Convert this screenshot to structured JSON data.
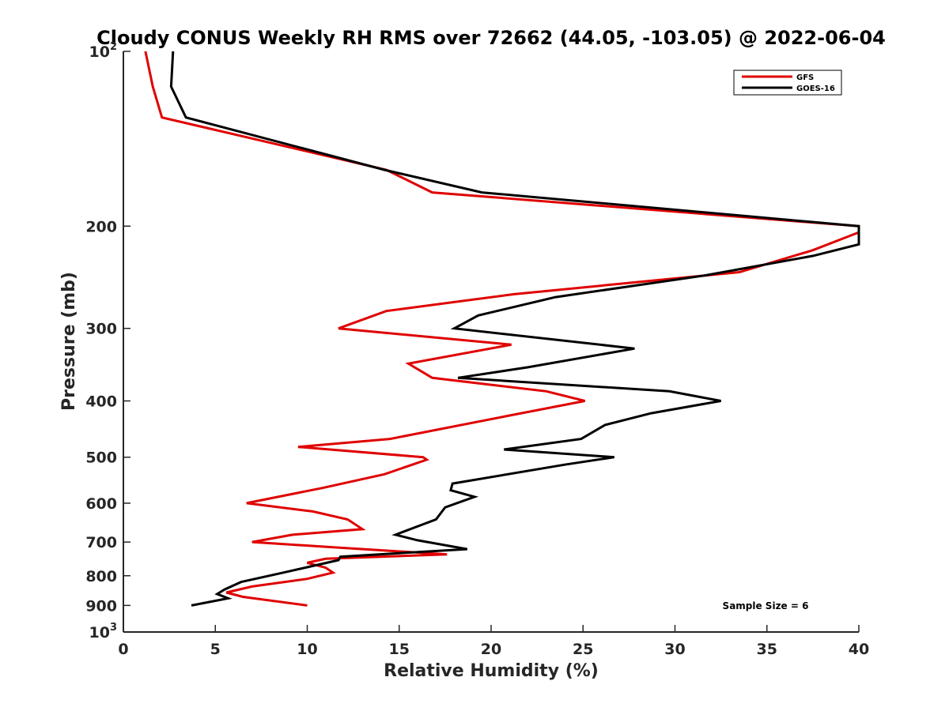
{
  "chart_data": {
    "type": "line",
    "title": "Cloudy CONUS Weekly RH RMS over 72662 (44.05, -103.05) @ 2022-06-04",
    "xlabel": "Relative Humidity (%)",
    "ylabel": "Pressure (mb)",
    "xlim": [
      0,
      40
    ],
    "ylim": [
      100,
      1000
    ],
    "y_scale": "log",
    "y_reversed": true,
    "x_ticks": [
      0,
      5,
      10,
      15,
      20,
      25,
      30,
      35,
      40
    ],
    "y_ticks": [
      {
        "value": 100,
        "label": "10",
        "sup": "2"
      },
      {
        "value": 200,
        "label": "200",
        "sup": ""
      },
      {
        "value": 300,
        "label": "300",
        "sup": ""
      },
      {
        "value": 400,
        "label": "400",
        "sup": ""
      },
      {
        "value": 500,
        "label": "500",
        "sup": ""
      },
      {
        "value": 600,
        "label": "600",
        "sup": ""
      },
      {
        "value": 700,
        "label": "700",
        "sup": ""
      },
      {
        "value": 800,
        "label": "800",
        "sup": ""
      },
      {
        "value": 900,
        "label": "900",
        "sup": ""
      },
      {
        "value": 1000,
        "label": "10",
        "sup": "3"
      }
    ],
    "grid": false,
    "legend_position": "top-right",
    "series": [
      {
        "name": "GFS",
        "color": "#e00000",
        "points": [
          {
            "x": 1.2,
            "y": 100
          },
          {
            "x": 1.6,
            "y": 115
          },
          {
            "x": 2.1,
            "y": 130
          },
          {
            "x": 14.3,
            "y": 160
          },
          {
            "x": 16.8,
            "y": 175
          },
          {
            "x": 40.0,
            "y": 200
          },
          {
            "x": 40.0,
            "y": 205
          },
          {
            "x": 37.5,
            "y": 220
          },
          {
            "x": 33.5,
            "y": 240
          },
          {
            "x": 21.2,
            "y": 262
          },
          {
            "x": 14.3,
            "y": 280
          },
          {
            "x": 11.7,
            "y": 300
          },
          {
            "x": 21.1,
            "y": 320
          },
          {
            "x": 15.5,
            "y": 345
          },
          {
            "x": 16.8,
            "y": 365
          },
          {
            "x": 23.0,
            "y": 385
          },
          {
            "x": 25.1,
            "y": 400
          },
          {
            "x": 20.8,
            "y": 425
          },
          {
            "x": 14.5,
            "y": 465
          },
          {
            "x": 9.5,
            "y": 480
          },
          {
            "x": 16.3,
            "y": 500
          },
          {
            "x": 16.5,
            "y": 505
          },
          {
            "x": 14.2,
            "y": 535
          },
          {
            "x": 10.8,
            "y": 565
          },
          {
            "x": 6.7,
            "y": 600
          },
          {
            "x": 10.3,
            "y": 620
          },
          {
            "x": 12.2,
            "y": 640
          },
          {
            "x": 13.0,
            "y": 665
          },
          {
            "x": 9.2,
            "y": 680
          },
          {
            "x": 7.0,
            "y": 700
          },
          {
            "x": 11.5,
            "y": 715
          },
          {
            "x": 17.6,
            "y": 735
          },
          {
            "x": 11.0,
            "y": 748
          },
          {
            "x": 10.0,
            "y": 760
          },
          {
            "x": 11.0,
            "y": 775
          },
          {
            "x": 11.4,
            "y": 790
          },
          {
            "x": 10.0,
            "y": 810
          },
          {
            "x": 7.0,
            "y": 835
          },
          {
            "x": 5.6,
            "y": 855
          },
          {
            "x": 6.5,
            "y": 870
          },
          {
            "x": 10.0,
            "y": 900
          }
        ]
      },
      {
        "name": "GOES-16",
        "color": "#000000",
        "points": [
          {
            "x": 2.7,
            "y": 100
          },
          {
            "x": 2.6,
            "y": 115
          },
          {
            "x": 3.4,
            "y": 130
          },
          {
            "x": 14.2,
            "y": 160
          },
          {
            "x": 19.5,
            "y": 175
          },
          {
            "x": 40.0,
            "y": 200
          },
          {
            "x": 40.0,
            "y": 215
          },
          {
            "x": 37.5,
            "y": 225
          },
          {
            "x": 31.7,
            "y": 243
          },
          {
            "x": 23.5,
            "y": 265
          },
          {
            "x": 19.3,
            "y": 285
          },
          {
            "x": 18.0,
            "y": 300
          },
          {
            "x": 27.8,
            "y": 325
          },
          {
            "x": 22.0,
            "y": 350
          },
          {
            "x": 18.2,
            "y": 365
          },
          {
            "x": 29.7,
            "y": 385
          },
          {
            "x": 32.5,
            "y": 400
          },
          {
            "x": 28.7,
            "y": 420
          },
          {
            "x": 26.2,
            "y": 440
          },
          {
            "x": 24.9,
            "y": 465
          },
          {
            "x": 20.7,
            "y": 485
          },
          {
            "x": 26.7,
            "y": 500
          },
          {
            "x": 24.0,
            "y": 515
          },
          {
            "x": 17.9,
            "y": 555
          },
          {
            "x": 17.8,
            "y": 570
          },
          {
            "x": 19.1,
            "y": 585
          },
          {
            "x": 17.5,
            "y": 610
          },
          {
            "x": 17.0,
            "y": 640
          },
          {
            "x": 14.8,
            "y": 680
          },
          {
            "x": 16.0,
            "y": 695
          },
          {
            "x": 18.7,
            "y": 720
          },
          {
            "x": 11.8,
            "y": 742
          },
          {
            "x": 11.7,
            "y": 752
          },
          {
            "x": 8.7,
            "y": 790
          },
          {
            "x": 6.4,
            "y": 820
          },
          {
            "x": 5.5,
            "y": 845
          },
          {
            "x": 5.1,
            "y": 860
          },
          {
            "x": 5.7,
            "y": 875
          },
          {
            "x": 3.7,
            "y": 900
          }
        ]
      }
    ],
    "annotation": "Sample Size = 6"
  }
}
